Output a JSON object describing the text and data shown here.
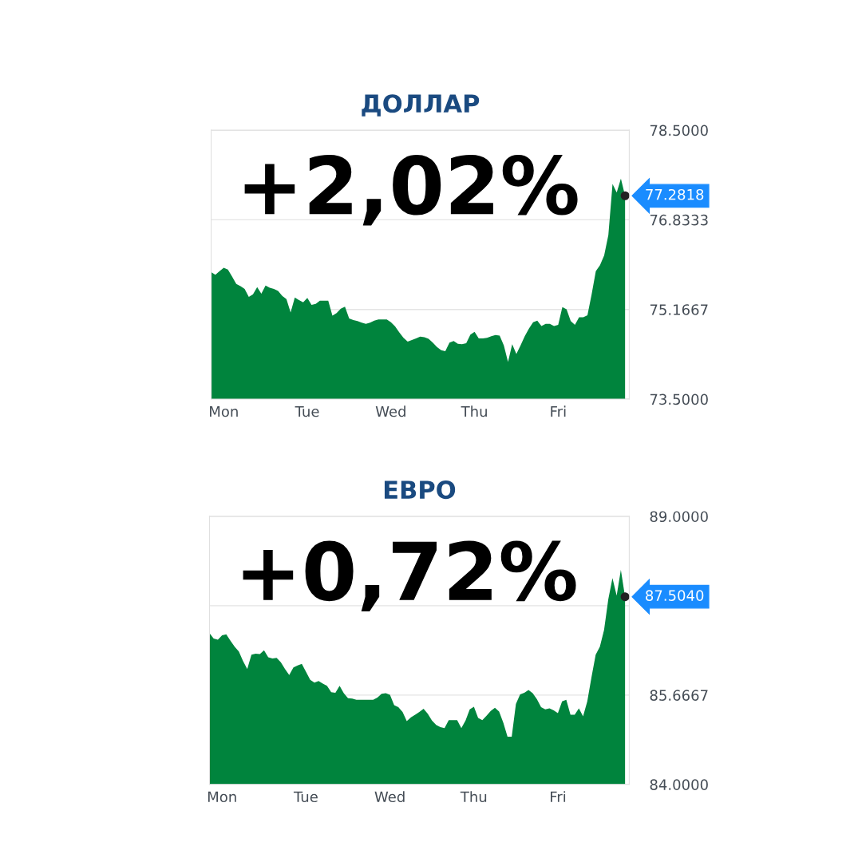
{
  "chart_data": [
    {
      "type": "area",
      "title": "ДОЛЛАР",
      "color": "#00843d",
      "grid": "y",
      "tick_labels": "xy",
      "categories": [
        null,
        null,
        null,
        "Mon",
        null,
        null,
        null,
        null,
        null,
        null,
        null,
        null,
        null,
        null,
        null,
        null,
        null,
        null,
        null,
        null,
        null,
        null,
        null,
        "Tue",
        null,
        null,
        null,
        null,
        null,
        null,
        null,
        null,
        null,
        null,
        null,
        null,
        null,
        null,
        null,
        null,
        null,
        null,
        null,
        "Wed",
        null,
        null,
        null,
        null,
        null,
        null,
        null,
        null,
        null,
        null,
        null,
        null,
        null,
        null,
        null,
        null,
        null,
        null,
        null,
        "Thu",
        null,
        null,
        null,
        null,
        null,
        null,
        null,
        null,
        null,
        null,
        null,
        null,
        null,
        null,
        null,
        null,
        null,
        null,
        null,
        "Fri",
        null,
        null,
        null,
        null,
        null,
        null,
        null,
        null,
        null,
        null,
        null,
        null,
        null,
        null,
        null,
        null
      ],
      "values": [
        75.86,
        75.81,
        75.88,
        75.94,
        75.91,
        75.78,
        75.64,
        75.6,
        75.55,
        75.4,
        75.45,
        75.58,
        75.46,
        75.61,
        75.57,
        75.55,
        75.51,
        75.42,
        75.36,
        75.11,
        75.39,
        75.34,
        75.3,
        75.38,
        75.25,
        75.27,
        75.33,
        75.33,
        75.33,
        75.05,
        75.1,
        75.18,
        75.22,
        75.0,
        74.97,
        74.95,
        74.92,
        74.9,
        74.92,
        74.96,
        74.98,
        74.98,
        74.98,
        74.93,
        74.85,
        74.74,
        74.64,
        74.57,
        74.6,
        74.63,
        74.66,
        74.65,
        74.62,
        74.55,
        74.47,
        74.41,
        74.39,
        74.55,
        74.58,
        74.53,
        74.52,
        74.54,
        74.7,
        74.75,
        74.63,
        74.63,
        74.64,
        74.67,
        74.69,
        74.68,
        74.5,
        74.19,
        74.52,
        74.34,
        74.5,
        74.67,
        74.81,
        74.93,
        74.96,
        74.86,
        74.9,
        74.9,
        74.86,
        74.88,
        75.21,
        75.17,
        74.95,
        74.88,
        75.02,
        75.02,
        75.06,
        75.45,
        75.88,
        75.99,
        76.17,
        76.55,
        77.5,
        77.34,
        77.6,
        77.28
      ],
      "ylim": [
        73.5,
        78.5
      ],
      "yticks": [
        {
          "value": 73.5,
          "label": "73.5000"
        },
        {
          "value": 75.1667,
          "label": "75.1667"
        },
        {
          "value": 76.8333,
          "label": "76.8333"
        },
        {
          "value": 78.5,
          "label": "78.5000"
        }
      ],
      "annotations": [
        "+2,02%",
        "77.2818"
      ]
    },
    {
      "type": "area",
      "title": "ЕВРО",
      "color": "#00843d",
      "grid": "y",
      "tick_labels": "xy",
      "categories": [
        null,
        null,
        null,
        "Mon",
        null,
        null,
        null,
        null,
        null,
        null,
        null,
        null,
        null,
        null,
        null,
        null,
        null,
        null,
        null,
        null,
        null,
        null,
        null,
        "Tue",
        null,
        null,
        null,
        null,
        null,
        null,
        null,
        null,
        null,
        null,
        null,
        null,
        null,
        null,
        null,
        null,
        null,
        null,
        null,
        "Wed",
        null,
        null,
        null,
        null,
        null,
        null,
        null,
        null,
        null,
        null,
        null,
        null,
        null,
        null,
        null,
        null,
        null,
        null,
        null,
        "Thu",
        null,
        null,
        null,
        null,
        null,
        null,
        null,
        null,
        null,
        null,
        null,
        null,
        null,
        null,
        null,
        null,
        null,
        null,
        null,
        "Fri",
        null,
        null,
        null,
        null,
        null,
        null,
        null,
        null,
        null,
        null,
        null,
        null,
        null,
        null,
        null,
        null
      ],
      "values": [
        86.82,
        86.72,
        86.7,
        86.78,
        86.8,
        86.68,
        86.57,
        86.48,
        86.3,
        86.15,
        86.42,
        86.44,
        86.43,
        86.5,
        86.37,
        86.35,
        86.36,
        86.28,
        86.15,
        86.04,
        86.18,
        86.22,
        86.25,
        86.1,
        85.95,
        85.9,
        85.93,
        85.88,
        85.84,
        85.72,
        85.71,
        85.84,
        85.7,
        85.61,
        85.6,
        85.58,
        85.58,
        85.58,
        85.58,
        85.58,
        85.62,
        85.69,
        85.7,
        85.67,
        85.48,
        85.44,
        85.35,
        85.18,
        85.25,
        85.3,
        85.35,
        85.41,
        85.32,
        85.19,
        85.11,
        85.07,
        85.05,
        85.2,
        85.2,
        85.2,
        85.05,
        85.19,
        85.4,
        85.45,
        85.24,
        85.2,
        85.28,
        85.37,
        85.43,
        85.36,
        85.15,
        84.89,
        84.89,
        85.5,
        85.68,
        85.71,
        85.76,
        85.7,
        85.59,
        85.44,
        85.4,
        85.42,
        85.38,
        85.33,
        85.55,
        85.58,
        85.3,
        85.3,
        85.42,
        85.27,
        85.55,
        86.0,
        86.42,
        86.57,
        86.88,
        87.45,
        87.85,
        87.52,
        88.0,
        87.5
      ],
      "ylim": [
        84,
        89
      ],
      "yticks": [
        {
          "value": 84,
          "label": "84.0000"
        },
        {
          "value": 85.6667,
          "label": "85.6667"
        },
        {
          "value": 87.3333,
          "label": null
        },
        {
          "value": 89,
          "label": "89.0000"
        }
      ],
      "annotations": [
        "+0,72%",
        "87.5040"
      ]
    }
  ]
}
